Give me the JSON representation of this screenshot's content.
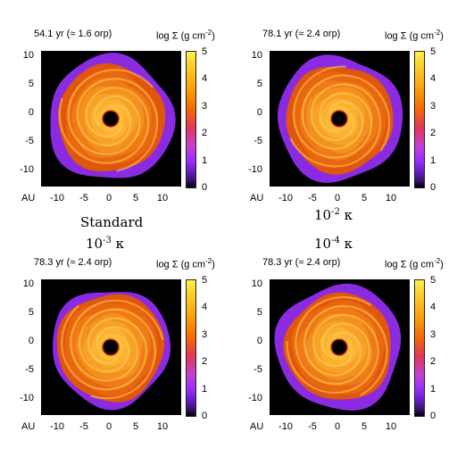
{
  "panels": [
    {
      "time": "54.1 yr (≈ 1.6 orp)",
      "colorbar_label": "log Σ (g cm",
      "colorbar_sup": "-2",
      "colorbar_close": ")"
    },
    {
      "time": "78.1 yr (≈ 2.4 orp)",
      "colorbar_label": "log Σ (g cm",
      "colorbar_sup": "-2",
      "colorbar_close": ")"
    },
    {
      "time": "78.3 yr (≈ 2.4 orp)",
      "colorbar_label": "log Σ (g cm",
      "colorbar_sup": "-2",
      "colorbar_close": ")"
    },
    {
      "time": "78.3 yr (≈ 2.4 orp)",
      "colorbar_label": "log Σ (g cm",
      "colorbar_sup": "-2",
      "colorbar_close": ")"
    }
  ],
  "axes": {
    "y_ticks": [
      "10",
      "5",
      "0",
      "-5",
      "-10"
    ],
    "x_ticks": [
      "-10",
      "-5",
      "0",
      "5",
      "10"
    ],
    "x_unit": "AU",
    "colorbar_ticks": [
      "5",
      "4",
      "3",
      "2",
      "1",
      "0"
    ]
  },
  "models": {
    "standard": "Standard",
    "m2_base": "10",
    "m2_exp": "-2",
    "m2_sym": "κ",
    "m3_base": "10",
    "m3_exp": "-3",
    "m3_sym": "κ",
    "m4_base": "10",
    "m4_exp": "-4",
    "m4_sym": "κ"
  },
  "colors": {
    "disk_outer": "#8a2be2",
    "disk_mid": "#e8620a",
    "disk_inner": "#ffb030",
    "background": "#000000"
  }
}
